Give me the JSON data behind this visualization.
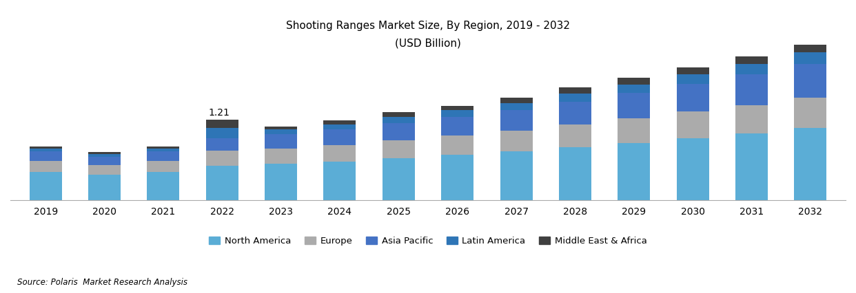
{
  "title_line1": "Shooting Ranges Market Size, By Region, 2019 - 2032",
  "title_line2": "(USD Billion)",
  "source": "Source: Polaris  Market Research Analysis",
  "years": [
    2019,
    2020,
    2021,
    2022,
    2023,
    2024,
    2025,
    2026,
    2027,
    2028,
    2029,
    2030,
    2031,
    2032
  ],
  "regions": [
    "North America",
    "Europe",
    "Asia Pacific",
    "Latin America",
    "Middle East & Africa"
  ],
  "colors": [
    "#5BADD6",
    "#ABABAB",
    "#4472C4",
    "#2E75B6",
    "#404040"
  ],
  "annotation_year": 2022,
  "annotation_text": "1.21",
  "data": {
    "North America": [
      0.42,
      0.38,
      0.42,
      0.52,
      0.55,
      0.58,
      0.63,
      0.68,
      0.73,
      0.8,
      0.86,
      0.93,
      1.0,
      1.08
    ],
    "Europe": [
      0.17,
      0.15,
      0.17,
      0.22,
      0.23,
      0.25,
      0.27,
      0.29,
      0.31,
      0.34,
      0.37,
      0.4,
      0.43,
      0.46
    ],
    "Asia Pacific": [
      0.14,
      0.12,
      0.14,
      0.19,
      0.21,
      0.23,
      0.26,
      0.28,
      0.31,
      0.34,
      0.38,
      0.42,
      0.46,
      0.51
    ],
    "Latin America": [
      0.04,
      0.04,
      0.04,
      0.15,
      0.07,
      0.08,
      0.09,
      0.1,
      0.11,
      0.12,
      0.13,
      0.14,
      0.16,
      0.17
    ],
    "Middle East & Africa": [
      0.04,
      0.03,
      0.04,
      0.13,
      0.05,
      0.06,
      0.07,
      0.07,
      0.08,
      0.09,
      0.1,
      0.1,
      0.11,
      0.12
    ]
  },
  "ylim": [
    0,
    2.5
  ],
  "figsize": [
    12.42,
    4.26
  ],
  "dpi": 100,
  "background_color": "#FFFFFF"
}
